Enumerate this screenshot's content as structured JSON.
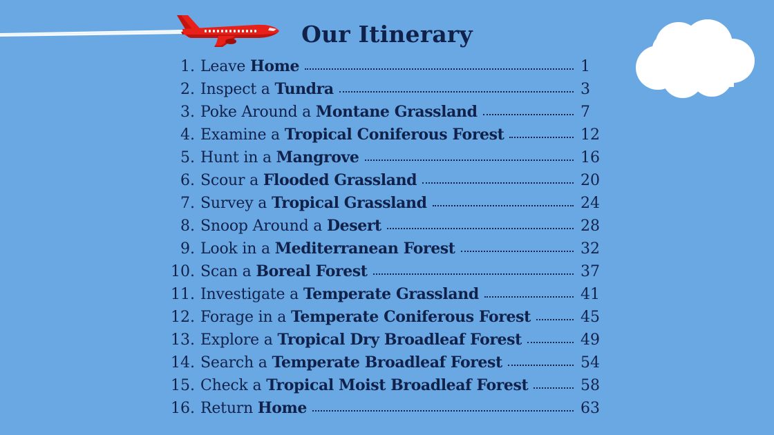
{
  "colors": {
    "sky": "#6aa8e4",
    "ink": "#10214a",
    "plane": "#e8201a",
    "cloud": "#ffffff"
  },
  "icons": {
    "plane": "airplane-icon",
    "cloud": "cloud-icon",
    "contrail": "contrail"
  },
  "title": "Our Itinerary",
  "items": [
    {
      "num": "1.",
      "verb": "Leave ",
      "place": "Home",
      "page": "1"
    },
    {
      "num": "2.",
      "verb": "Inspect a ",
      "place": "Tundra",
      "page": "3"
    },
    {
      "num": "3.",
      "verb": "Poke Around a ",
      "place": "Montane Grassland",
      "page": "7"
    },
    {
      "num": "4.",
      "verb": "Examine a ",
      "place": "Tropical Coniferous Forest",
      "page": "12"
    },
    {
      "num": "5.",
      "verb": "Hunt in a ",
      "place": "Mangrove",
      "page": "16"
    },
    {
      "num": "6.",
      "verb": "Scour a ",
      "place": "Flooded Grassland",
      "page": "20"
    },
    {
      "num": "7.",
      "verb": "Survey a ",
      "place": "Tropical Grassland",
      "page": "24"
    },
    {
      "num": "8.",
      "verb": "Snoop Around a ",
      "place": "Desert",
      "page": "28"
    },
    {
      "num": "9.",
      "verb": "Look in a ",
      "place": "Mediterranean Forest",
      "page": "32"
    },
    {
      "num": "10.",
      "verb": "Scan a ",
      "place": "Boreal Forest",
      "page": "37"
    },
    {
      "num": "11.",
      "verb": "Investigate a ",
      "place": "Temperate Grassland",
      "page": "41"
    },
    {
      "num": "12.",
      "verb": "Forage in a ",
      "place": "Temperate Coniferous Forest",
      "page": "45"
    },
    {
      "num": "13.",
      "verb": "Explore a ",
      "place": "Tropical Dry Broadleaf Forest",
      "page": "49"
    },
    {
      "num": "14.",
      "verb": "Search a ",
      "place": "Temperate Broadleaf Forest",
      "page": "54"
    },
    {
      "num": "15.",
      "verb": "Check a ",
      "place": "Tropical Moist Broadleaf Forest",
      "page": "58"
    },
    {
      "num": "16.",
      "verb": "Return ",
      "place": "Home",
      "page": "63"
    }
  ]
}
